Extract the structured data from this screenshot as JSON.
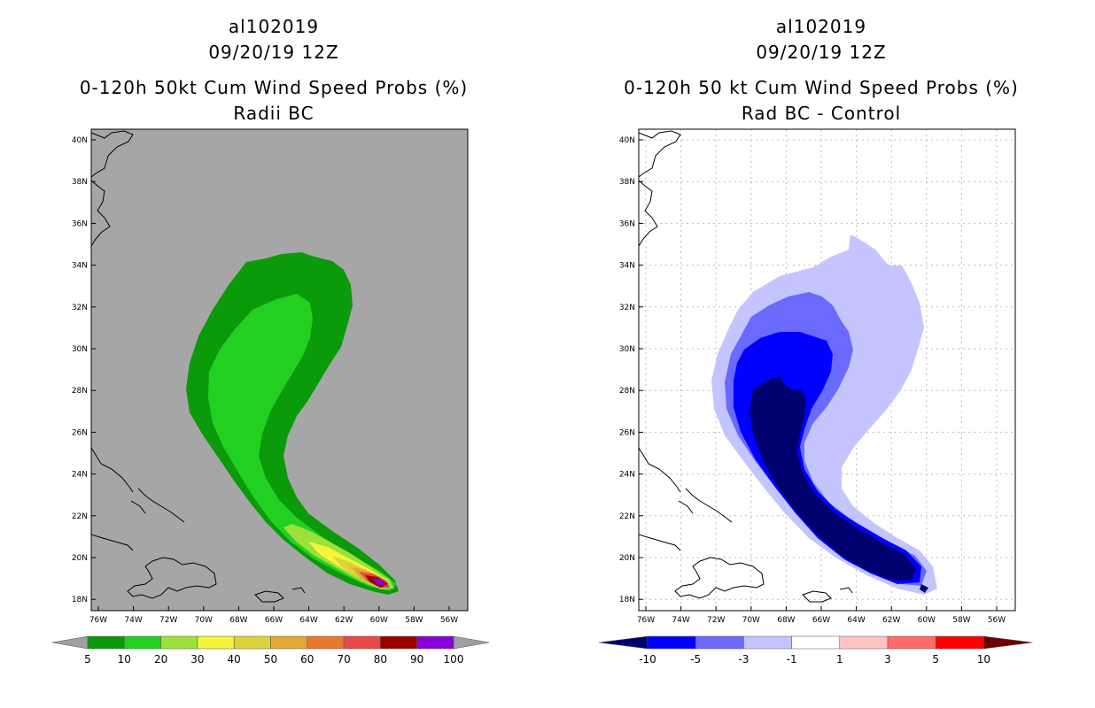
{
  "left_panel": {
    "storm_id": "al102019",
    "datetime": "09/20/19 12Z",
    "product": "0-120h 50kt Cum Wind Speed Probs (%)",
    "variant": "Radii BC",
    "legend": {
      "colors": [
        "#9f9f9f",
        "#0a9a0a",
        "#22d022",
        "#9ce03a",
        "#f4f43a",
        "#ddd23a",
        "#e0a838",
        "#e87a30",
        "#e84848",
        "#9b0000",
        "#8a00d8",
        "#9f9f9f"
      ],
      "labels": [
        "5",
        "10",
        "20",
        "30",
        "40",
        "50",
        "60",
        "70",
        "80",
        "90",
        "100"
      ]
    }
  },
  "right_panel": {
    "storm_id": "al102019",
    "datetime": "09/20/19 12Z",
    "product": "0-120h 50 kt Cum Wind Speed Probs (%)",
    "variant": "Rad BC - Control",
    "legend": {
      "colors": [
        "#00006e",
        "#0000ff",
        "#6a6aff",
        "#c4c4ff",
        "#ffffff",
        "#ffc4c4",
        "#ff6a6a",
        "#ff0000",
        "#6e0000"
      ],
      "labels": [
        "-10",
        "-5",
        "-3",
        "-1",
        "1",
        "3",
        "5",
        "10"
      ]
    }
  },
  "axes": {
    "lat_labels": [
      "40N",
      "38N",
      "36N",
      "34N",
      "32N",
      "30N",
      "28N",
      "26N",
      "24N",
      "22N",
      "20N",
      "18N"
    ],
    "lon_labels": [
      "76W",
      "74W",
      "72W",
      "70W",
      "68W",
      "66W",
      "64W",
      "62W",
      "60W",
      "58W",
      "56W"
    ]
  },
  "colors": {
    "land_gray": "#a6a6a6",
    "plume_outer": "#0a9a0a",
    "plume_inner": "#22d022"
  }
}
